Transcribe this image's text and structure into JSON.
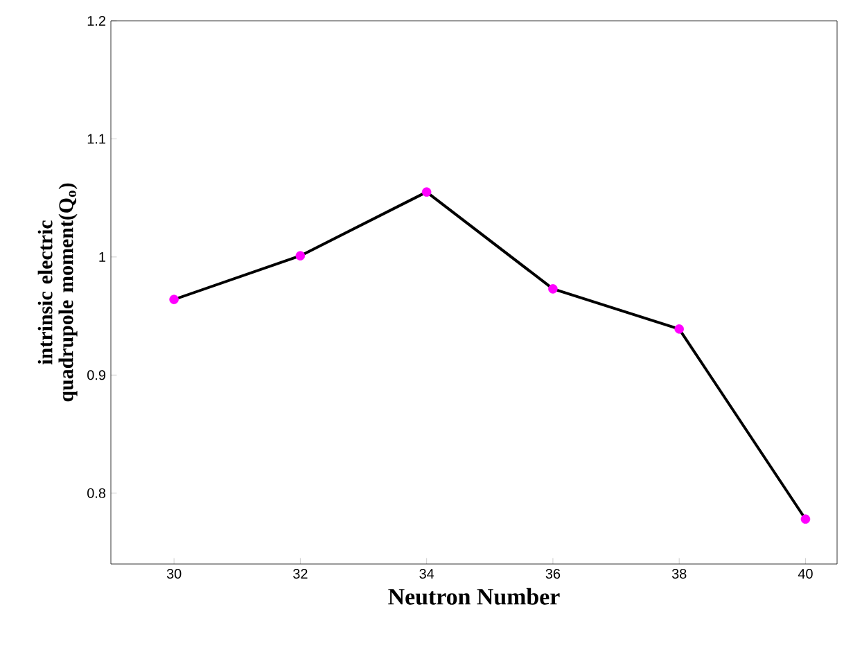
{
  "chart_data": {
    "type": "line",
    "xlabel": "Neutron Number",
    "ylabel": "intrinsic electric quadrupole moment(Q$_{o}$)",
    "x": [
      30,
      32,
      34,
      36,
      38,
      40
    ],
    "values": [
      0.964,
      1.001,
      1.055,
      0.973,
      0.939,
      0.778
    ],
    "color": "#000000",
    "colors": [
      "#ff00ff",
      "#ff00ff",
      "#ff00ff",
      "#ff00ff",
      "#ff00ff",
      "#ff00ff"
    ],
    "marker": "circle",
    "line_style": "solid",
    "xlim": [
      29,
      40.5
    ],
    "ylim": [
      0.74,
      1.2
    ],
    "xticks": [
      30,
      32,
      34,
      36,
      38,
      40
    ],
    "yticks": [
      0.8,
      0.9,
      {
        "value": 1,
        "label": "1"
      },
      1.1,
      1.2
    ],
    "grid": false
  }
}
